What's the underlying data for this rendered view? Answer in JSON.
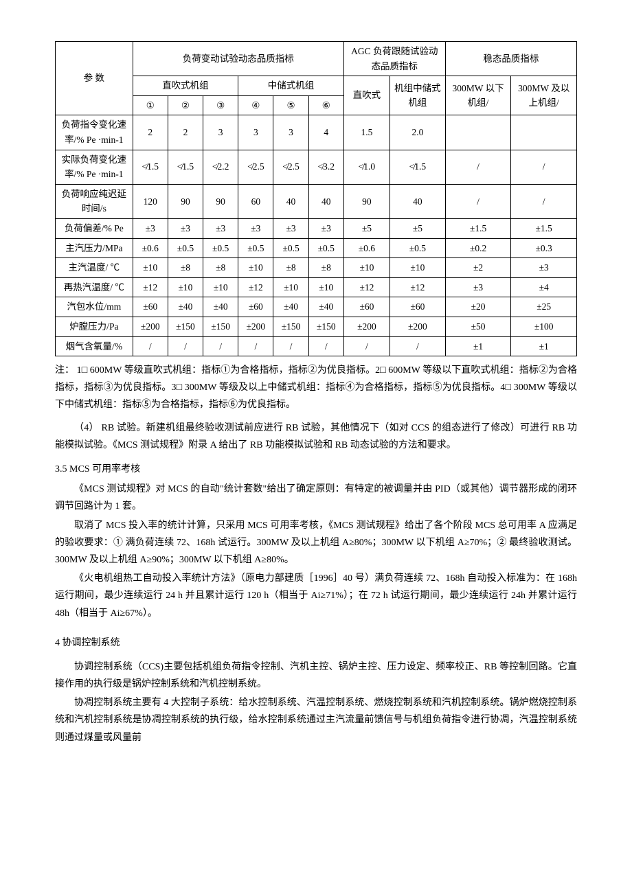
{
  "table": {
    "header": {
      "param": "参 数",
      "dynamic_title": "负荷变动试验动态品质指标",
      "agc_title": "AGC 负荷跟随试验动态品质指标",
      "stable_title": "稳态品质指标",
      "direct_blow": "直吹式机组",
      "mid_store": "中储式机组",
      "agc_direct": "直吹式",
      "agc_mid": "机组中储式机组",
      "stable_below": "300MW 以下机组/",
      "stable_above": "300MW 及以上机组/",
      "c1": "①",
      "c2": "②",
      "c3": "③",
      "c4": "④",
      "c5": "⑤",
      "c6": "⑥"
    },
    "rows": [
      {
        "param": "负荷指令变化速率/% Pe ·min-1",
        "v": [
          "2",
          "2",
          "3",
          "3",
          "3",
          "4",
          "1.5",
          "2.0",
          "",
          ""
        ]
      },
      {
        "param": "实际负荷变化速率/% Pe ·min-1",
        "v": [
          "≮1.5",
          "≮1.5",
          "≮2.2",
          "≮2.5",
          "≮2.5",
          "≮3.2",
          "≮1.0",
          "≮1.5",
          "/",
          "/"
        ]
      },
      {
        "param": "负荷响应纯迟延时间/s",
        "v": [
          "120",
          "90",
          "90",
          "60",
          "40",
          "40",
          "90",
          "40",
          "/",
          "/"
        ]
      },
      {
        "param": "负荷偏差/% Pe",
        "v": [
          "±3",
          "±3",
          "±3",
          "±3",
          "±3",
          "±3",
          "±5",
          "±5",
          "±1.5",
          "±1.5"
        ]
      },
      {
        "param": "主汽压力/MPa",
        "v": [
          "±0.6",
          "±0.5",
          "±0.5",
          "±0.5",
          "±0.5",
          "±0.5",
          "±0.6",
          "±0.5",
          "±0.2",
          "±0.3"
        ]
      },
      {
        "param": "主汽温度/ ℃",
        "v": [
          "±10",
          "±8",
          "±8",
          "±10",
          "±8",
          "±8",
          "±10",
          "±10",
          "±2",
          "±3"
        ]
      },
      {
        "param": "再热汽温度/ ℃",
        "v": [
          "±12",
          "±10",
          "±10",
          "±12",
          "±10",
          "±10",
          "±12",
          "±12",
          "±3",
          "±4"
        ]
      },
      {
        "param": "汽包水位/mm",
        "v": [
          "±60",
          "±40",
          "±40",
          "±60",
          "±40",
          "±40",
          "±60",
          "±60",
          "±20",
          "±25"
        ]
      },
      {
        "param": "炉膛压力/Pa",
        "v": [
          "±200",
          "±150",
          "±150",
          "±200",
          "±150",
          "±150",
          "±200",
          "±200",
          "±50",
          "±100"
        ]
      },
      {
        "param": "烟气含氧量/%",
        "v": [
          "/",
          "/",
          "/",
          "/",
          "/",
          "/",
          "/",
          "/",
          "±1",
          "±1"
        ]
      }
    ]
  },
  "note": "注： 1□ 600MW 等级直吹式机组：指标①为合格指标，指标②为优良指标。2□ 600MW 等级以下直吹式机组：指标②为合格指标，指标③为优良指标。3□ 300MW 等级及以上中储式机组：指标④为合格指标，指标⑤为优良指标。4□ 300MW 等级以下中储式机组：指标⑤为合格指标，指标⑥为优良指标。",
  "p_rb": "（4） RB 试验。新建机组最终验收测试前应进行 RB 试验，其他情况下（如对  CCS 的组态进行了修改）可进行 RB 功能模拟试验。《MCS 测试规程》附录 A 给出了 RB 功能模拟试验和 RB 动态试验的方法和要求。",
  "s35_title": "3.5 MCS 可用率考核",
  "s35_p1": "《MCS 测试规程》对 MCS 的自动\"统计套数\"给出了确定原则：有特定的被调量并由 PID（或其他）调节器形成的闭环调节回路计为 1 套。",
  "s35_p2": "取消了 MCS 投入率的统计计算，只采用 MCS 可用率考核，《MCS 测试规程》给出了各个阶段 MCS 总可用率 A 应满足的验收要求：① 满负荷连续 72、168h 试运行。300MW 及以上机组 A≥80%；300MW 以下机组 A≥70%；② 最终验收测试。300MW 及以上机组 A≥90%；300MW 以下机组 A≥80%。",
  "s35_p3": "《火电机组热工自动投入率统计方法》（原电力部建质［1996］40 号）满负荷连续 72、168h 自动投入标准为：在 168h 运行期间，最少连续运行 24 h 并且累计运行 120 h（相当于 Ai≥71%）；在 72 h 试运行期间，最少连续运行 24h 并累计运行 48h（相当于  Ai≥67%）。",
  "s4_title": "4 协调控制系统",
  "s4_p1": "协调控制系统（CCS)主要包括机组负荷指令控制、汽机主控、锅炉主控、压力设定、频率校正、RB 等控制回路。它直接作用的执行级是锅炉控制系统和汽机控制系统。",
  "s4_p2": "协凋控制系统主要有 4 大控制子系统：给水控制系统、汽温控制系统、燃烧控制系统和汽机控制系统。锅炉燃烧控制系统和汽机控制系统是协凋控制系统的执行级，给水控制系统通过主汽流量前馈信号与机组负荷指令进行协凋，汽温控制系统则通过煤量或风量前"
}
